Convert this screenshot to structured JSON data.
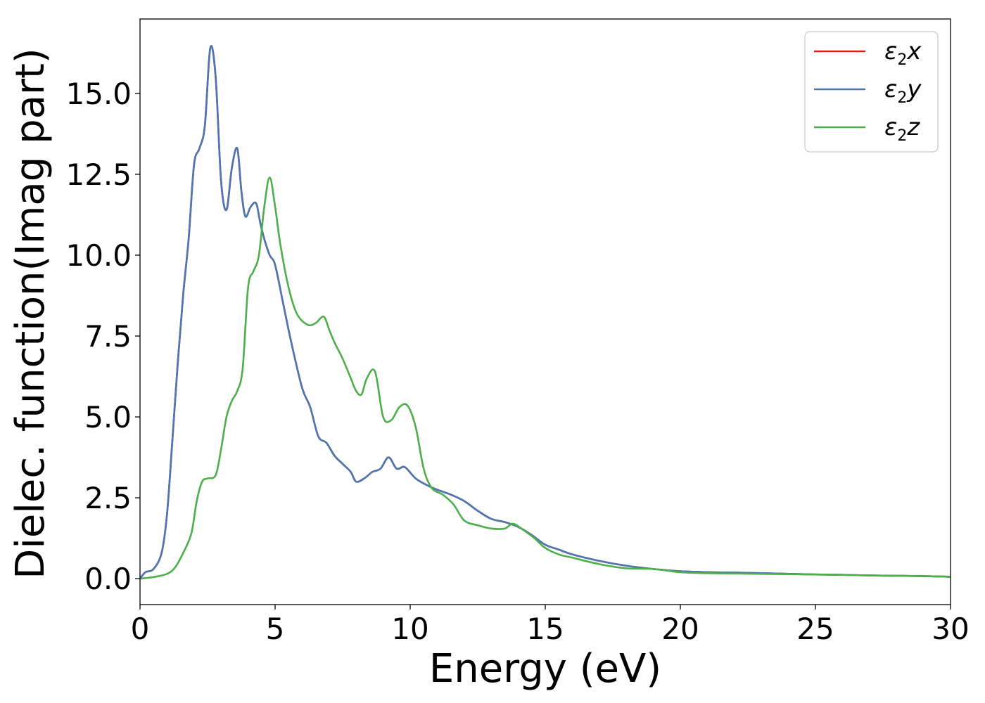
{
  "chart_data": {
    "type": "line",
    "xlabel": "Energy (eV)",
    "ylabel": "Dielec. function(Imag part)",
    "xlim": [
      0,
      30
    ],
    "ylim": [
      -0.8,
      17.3
    ],
    "xticks": [
      0,
      5,
      10,
      15,
      20,
      25,
      30
    ],
    "xtick_labels": [
      "0",
      "5",
      "10",
      "15",
      "20",
      "25",
      "30"
    ],
    "yticks": [
      0.0,
      2.5,
      5.0,
      7.5,
      10.0,
      12.5,
      15.0
    ],
    "ytick_labels": [
      "0.0",
      "2.5",
      "5.0",
      "7.5",
      "10.0",
      "12.5",
      "15.0"
    ],
    "grid": false,
    "legend_position": "top-right",
    "series": [
      {
        "name": "ε2x",
        "legend": {
          "symbol": "ε",
          "sub": "2",
          "var": "x"
        },
        "color": "#e41a1c",
        "x": [
          0,
          0.2,
          0.5,
          0.8,
          1.0,
          1.2,
          1.4,
          1.6,
          1.8,
          2.0,
          2.2,
          2.4,
          2.6,
          2.8,
          3.0,
          3.2,
          3.4,
          3.6,
          3.75,
          3.9,
          4.1,
          4.3,
          4.45,
          4.6,
          4.8,
          5.0,
          5.3,
          5.6,
          6.0,
          6.3,
          6.6,
          6.9,
          7.2,
          7.5,
          7.8,
          8.0,
          8.3,
          8.6,
          8.9,
          9.2,
          9.5,
          9.8,
          10.2,
          10.6,
          11.0,
          11.5,
          12.0,
          12.5,
          13.0,
          13.5,
          14.0,
          14.5,
          15.0,
          15.5,
          16.0,
          17.0,
          18.0,
          19.0,
          20.0,
          21.0,
          22.0,
          23.0,
          24.0,
          25.0,
          26.0,
          27.0,
          28.0,
          29.0,
          30.0
        ],
        "values": [
          0.0,
          0.2,
          0.3,
          0.8,
          2.0,
          4.3,
          6.7,
          8.8,
          10.5,
          12.8,
          13.3,
          14.0,
          16.4,
          15.5,
          12.3,
          11.4,
          12.7,
          13.3,
          12.0,
          11.2,
          11.5,
          11.6,
          11.0,
          10.5,
          10.0,
          9.7,
          8.5,
          7.3,
          5.9,
          5.3,
          4.4,
          4.2,
          3.8,
          3.55,
          3.3,
          3.0,
          3.1,
          3.3,
          3.4,
          3.75,
          3.4,
          3.45,
          3.1,
          2.9,
          2.75,
          2.6,
          2.4,
          2.1,
          1.85,
          1.75,
          1.6,
          1.35,
          1.05,
          0.9,
          0.75,
          0.55,
          0.4,
          0.3,
          0.23,
          0.2,
          0.19,
          0.17,
          0.15,
          0.13,
          0.12,
          0.1,
          0.09,
          0.08,
          0.06
        ]
      },
      {
        "name": "ε2y",
        "legend": {
          "symbol": "ε",
          "sub": "2",
          "var": "y"
        },
        "color": "#4a78b5",
        "x": [
          0,
          0.2,
          0.5,
          0.8,
          1.0,
          1.2,
          1.4,
          1.6,
          1.8,
          2.0,
          2.2,
          2.4,
          2.6,
          2.8,
          3.0,
          3.2,
          3.4,
          3.6,
          3.75,
          3.9,
          4.1,
          4.3,
          4.45,
          4.6,
          4.8,
          5.0,
          5.3,
          5.6,
          6.0,
          6.3,
          6.6,
          6.9,
          7.2,
          7.5,
          7.8,
          8.0,
          8.3,
          8.6,
          8.9,
          9.2,
          9.5,
          9.8,
          10.2,
          10.6,
          11.0,
          11.5,
          12.0,
          12.5,
          13.0,
          13.5,
          14.0,
          14.5,
          15.0,
          15.5,
          16.0,
          17.0,
          18.0,
          19.0,
          20.0,
          21.0,
          22.0,
          23.0,
          24.0,
          25.0,
          26.0,
          27.0,
          28.0,
          29.0,
          30.0
        ],
        "values": [
          0.0,
          0.2,
          0.3,
          0.8,
          2.0,
          4.3,
          6.7,
          8.8,
          10.5,
          12.8,
          13.3,
          14.0,
          16.4,
          15.5,
          12.3,
          11.4,
          12.7,
          13.3,
          12.0,
          11.2,
          11.5,
          11.6,
          11.0,
          10.5,
          10.0,
          9.7,
          8.5,
          7.3,
          5.9,
          5.3,
          4.4,
          4.2,
          3.8,
          3.55,
          3.3,
          3.0,
          3.1,
          3.3,
          3.4,
          3.75,
          3.4,
          3.45,
          3.1,
          2.9,
          2.75,
          2.6,
          2.4,
          2.1,
          1.85,
          1.75,
          1.6,
          1.35,
          1.05,
          0.9,
          0.75,
          0.55,
          0.4,
          0.3,
          0.23,
          0.2,
          0.19,
          0.17,
          0.15,
          0.13,
          0.12,
          0.1,
          0.09,
          0.08,
          0.06
        ]
      },
      {
        "name": "ε2z",
        "legend": {
          "symbol": "ε",
          "sub": "2",
          "var": "z"
        },
        "color": "#4daf4a",
        "x": [
          0,
          0.5,
          1.0,
          1.3,
          1.6,
          1.9,
          2.1,
          2.3,
          2.5,
          2.8,
          3.0,
          3.2,
          3.4,
          3.6,
          3.8,
          4.0,
          4.2,
          4.4,
          4.6,
          4.8,
          5.0,
          5.2,
          5.5,
          5.8,
          6.2,
          6.5,
          6.8,
          7.0,
          7.2,
          7.5,
          7.8,
          8.0,
          8.2,
          8.4,
          8.7,
          9.0,
          9.3,
          9.6,
          9.9,
          10.2,
          10.5,
          10.8,
          11.2,
          11.6,
          12.0,
          12.5,
          13.0,
          13.5,
          13.8,
          14.2,
          14.6,
          15.0,
          15.5,
          16.0,
          17.0,
          18.0,
          19.0,
          20.0,
          21.0,
          22.0,
          23.0,
          24.0,
          25.0,
          26.0,
          27.0,
          28.0,
          29.0,
          30.0
        ],
        "values": [
          0.0,
          0.05,
          0.15,
          0.35,
          0.8,
          1.4,
          2.4,
          3.0,
          3.1,
          3.2,
          4.0,
          5.0,
          5.5,
          5.8,
          6.5,
          9.0,
          9.5,
          10.0,
          11.5,
          12.4,
          11.5,
          10.3,
          9.0,
          8.2,
          7.85,
          7.9,
          8.1,
          7.7,
          7.3,
          6.8,
          6.2,
          5.8,
          5.7,
          6.2,
          6.4,
          5.0,
          4.9,
          5.3,
          5.35,
          4.7,
          3.4,
          2.8,
          2.6,
          2.3,
          1.8,
          1.65,
          1.55,
          1.55,
          1.7,
          1.5,
          1.25,
          0.95,
          0.75,
          0.65,
          0.45,
          0.32,
          0.3,
          0.2,
          0.17,
          0.16,
          0.15,
          0.14,
          0.13,
          0.12,
          0.1,
          0.09,
          0.08,
          0.06
        ]
      }
    ]
  }
}
